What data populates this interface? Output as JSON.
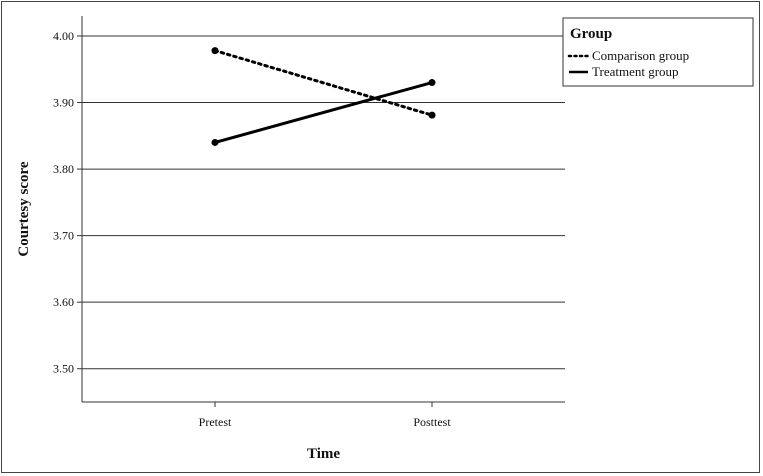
{
  "chart_data": {
    "type": "line",
    "categories": [
      "Pretest",
      "Posttest"
    ],
    "series": [
      {
        "name": "Comparison group",
        "values": [
          3.978,
          3.881
        ],
        "style": "dotted"
      },
      {
        "name": "Treatment group",
        "values": [
          3.84,
          3.93
        ],
        "style": "solid"
      }
    ],
    "xlabel": "Time",
    "ylabel": "Courtesy score",
    "ylim": [
      3.45,
      4.03
    ],
    "yticks": [
      "3.50",
      "3.60",
      "3.70",
      "3.80",
      "3.90",
      "4.00"
    ],
    "grid": "horizontal",
    "legend": {
      "title": "Group",
      "placement": "top-right"
    },
    "colors": {
      "line": "#000000",
      "grid": "#333333",
      "axis": "#333333"
    }
  }
}
